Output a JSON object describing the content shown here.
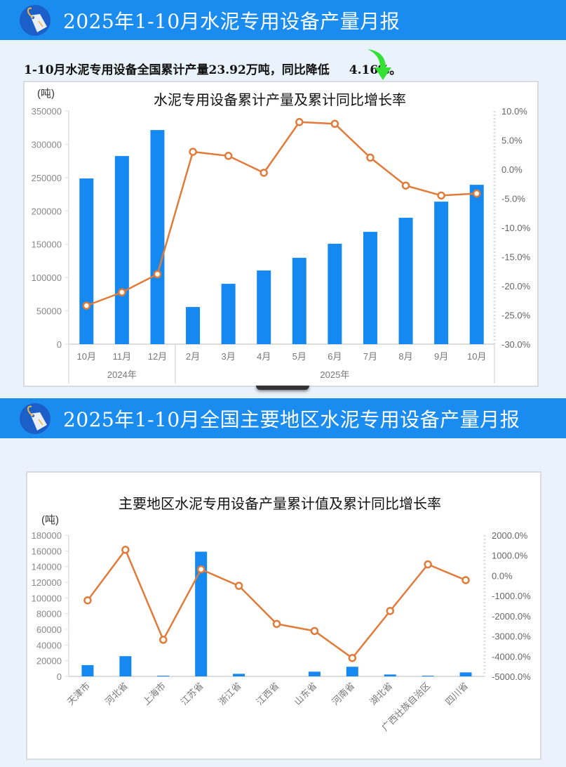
{
  "header1": {
    "title": "2025年1-10月水泥专用设备产量月报",
    "icon": "price-tag-icon"
  },
  "summary": {
    "text": "1-10月水泥专用设备全国累计产量23.92万吨，同比降低",
    "value": "4.16%。",
    "icon": "green-down-arrow-icon"
  },
  "header2": {
    "title": "2025年1-10月全国主要地区水泥专用设备产量月报",
    "icon": "price-tag-icon"
  },
  "colors": {
    "bar": "#1589f0",
    "line": "#e07b39",
    "banner": "#1a8cf0",
    "background": "#eaf2fc"
  },
  "chart_data": [
    {
      "type": "bar+line",
      "title": "水泥专用设备累计产量及累计同比增长率",
      "ylabel": "(吨)",
      "ylim": [
        0,
        350000
      ],
      "yticks": [
        0,
        50000,
        100000,
        150000,
        200000,
        250000,
        300000,
        350000
      ],
      "y2lim": [
        -30,
        10
      ],
      "y2ticks": [
        "-30.0%",
        "-25.0%",
        "-20.0%",
        "-15.0%",
        "-10.0%",
        "-5.0%",
        "0.0%",
        "5.0%",
        "10.0%"
      ],
      "categories": [
        "10月",
        "11月",
        "12月",
        "2月",
        "3月",
        "4月",
        "5月",
        "6月",
        "7月",
        "8月",
        "9月",
        "10月"
      ],
      "groups": [
        {
          "label": "2024年",
          "span": 3
        },
        {
          "label": "2025年",
          "span": 9
        }
      ],
      "series": [
        {
          "name": "累计产量",
          "type": "bar",
          "axis": "left",
          "values": [
            248700,
            282400,
            321400,
            55800,
            90600,
            110600,
            129600,
            150700,
            168600,
            189700,
            213900,
            239200
          ]
        },
        {
          "name": "累计同比增长率",
          "type": "line",
          "axis": "right",
          "values": [
            -23.4,
            -21.1,
            -18.0,
            3.0,
            2.3,
            -0.6,
            8.1,
            7.8,
            2.0,
            -2.8,
            -4.5,
            -4.16
          ]
        }
      ]
    },
    {
      "type": "bar+line",
      "title": "主要地区水泥专用设备产量累计值及累计同比增长率",
      "ylabel": "(吨)",
      "ylim": [
        0,
        180000
      ],
      "yticks": [
        0,
        20000,
        40000,
        60000,
        80000,
        100000,
        120000,
        140000,
        160000,
        180000
      ],
      "y2lim": [
        -5000,
        2000
      ],
      "y2ticks": [
        "-5000.0%",
        "-4000.0%",
        "-3000.0%",
        "-2000.0%",
        "-1000.0%",
        "0.0%",
        "1000.0%",
        "2000.0%"
      ],
      "categories": [
        "天津市",
        "河北省",
        "上海市",
        "江苏省",
        "浙江省",
        "江西省",
        "山东省",
        "河南省",
        "湖北省",
        "广西壮族自治区",
        "四川省"
      ],
      "series": [
        {
          "name": "产量累计值",
          "type": "bar",
          "axis": "left",
          "values": [
            14400,
            25800,
            900,
            159000,
            3300,
            0,
            6000,
            12300,
            2400,
            900,
            5100
          ]
        },
        {
          "name": "累计同比增长率",
          "type": "line",
          "axis": "right",
          "values": [
            -1231,
            1277,
            -3185,
            308,
            -509,
            -2398,
            -2748,
            -4090,
            -1756,
            554,
            -228
          ]
        }
      ]
    }
  ]
}
